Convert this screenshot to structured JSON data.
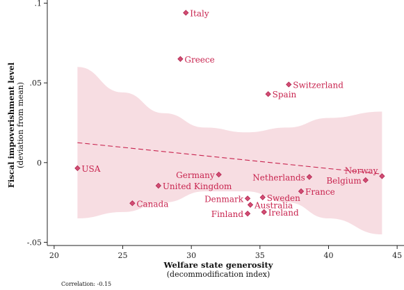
{
  "chart_data": {
    "type": "scatter",
    "title": "",
    "xlabel": "Welfare state generosity",
    "xlabel_sub": "(decommodification index)",
    "ylabel": "Fiscal impoverishment level",
    "ylabel_sub": "(deviation from mean)",
    "xlim": [
      19.5,
      45.5
    ],
    "ylim": [
      -0.052,
      0.102
    ],
    "x_ticks": [
      20,
      25,
      30,
      35,
      40,
      45
    ],
    "x_tick_labels": [
      "20",
      "25",
      "30",
      "35",
      "40",
      "45"
    ],
    "y_ticks": [
      -0.05,
      0,
      0.05,
      0.1
    ],
    "y_tick_labels": [
      "-.05",
      "0",
      ".05",
      ".1"
    ],
    "grid": false,
    "note": "Correlation: -0.15",
    "points": [
      {
        "label": "Italy",
        "x": 29.6,
        "y": 0.094
      },
      {
        "label": "Greece",
        "x": 29.2,
        "y": 0.065
      },
      {
        "label": "Switzerland",
        "x": 37.1,
        "y": 0.049
      },
      {
        "label": "Spain",
        "x": 35.6,
        "y": 0.043
      },
      {
        "label": "USA",
        "x": 21.7,
        "y": -0.0035
      },
      {
        "label": "Germany",
        "x": 32.0,
        "y": -0.0075
      },
      {
        "label": "Netherlands",
        "x": 38.6,
        "y": -0.009
      },
      {
        "label": "Norway",
        "x": 43.9,
        "y": -0.0085
      },
      {
        "label": "Belgium",
        "x": 42.7,
        "y": -0.011
      },
      {
        "label": "United Kingdom",
        "x": 27.6,
        "y": -0.0145
      },
      {
        "label": "France",
        "x": 38.0,
        "y": -0.018
      },
      {
        "label": "Canada",
        "x": 25.7,
        "y": -0.0255
      },
      {
        "label": "Denmark",
        "x": 34.1,
        "y": -0.0225
      },
      {
        "label": "Sweden",
        "x": 35.2,
        "y": -0.0218
      },
      {
        "label": "Australia",
        "x": 34.3,
        "y": -0.0265
      },
      {
        "label": "Finland",
        "x": 34.1,
        "y": -0.032
      },
      {
        "label": "Ireland",
        "x": 35.3,
        "y": -0.031
      }
    ],
    "fit_line": {
      "x": [
        21.7,
        43.9
      ],
      "y": [
        0.0125,
        -0.0072
      ]
    },
    "ci_band": {
      "x": [
        21.7,
        25,
        28,
        31,
        34,
        37,
        40,
        43.9
      ],
      "upper": [
        0.06,
        0.044,
        0.031,
        0.022,
        0.019,
        0.022,
        0.028,
        0.032
      ],
      "lower": [
        -0.035,
        -0.031,
        -0.025,
        -0.018,
        -0.018,
        -0.025,
        -0.035,
        -0.045
      ]
    },
    "colors": {
      "marker": "#d24d74",
      "marker_edge": "#b0254e",
      "label": "#c8244f",
      "band": "#f7dde2",
      "fit_line": "#c8244f",
      "axis": "#222222"
    }
  }
}
